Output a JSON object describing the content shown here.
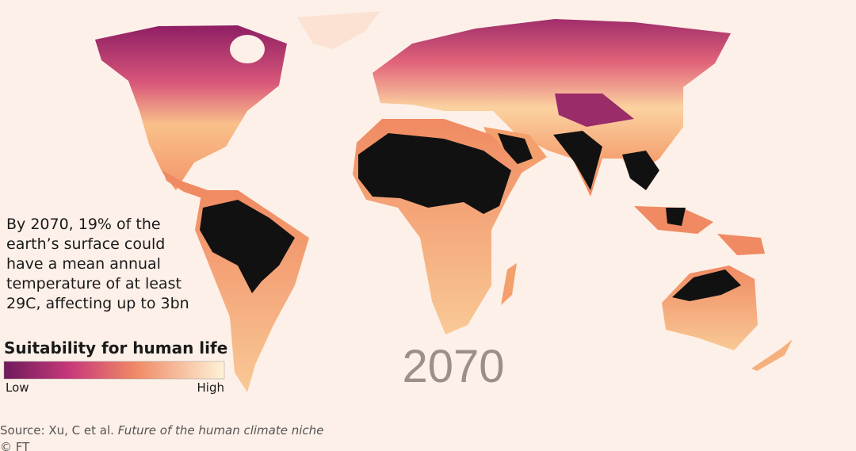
{
  "map": {
    "annotation_lines": [
      "By 2070, 19% of the",
      "earth’s surface could",
      "have a mean annual",
      "temperature of at least",
      "29C, affecting up to 3bn"
    ],
    "year": "2070",
    "legend": {
      "title": "Suitability for human life",
      "low": "Low",
      "high": "High"
    }
  },
  "source": {
    "prefix": "Source: Xu, C et al.",
    "title": "Future of the human climate niche"
  },
  "credit": "© FT"
}
